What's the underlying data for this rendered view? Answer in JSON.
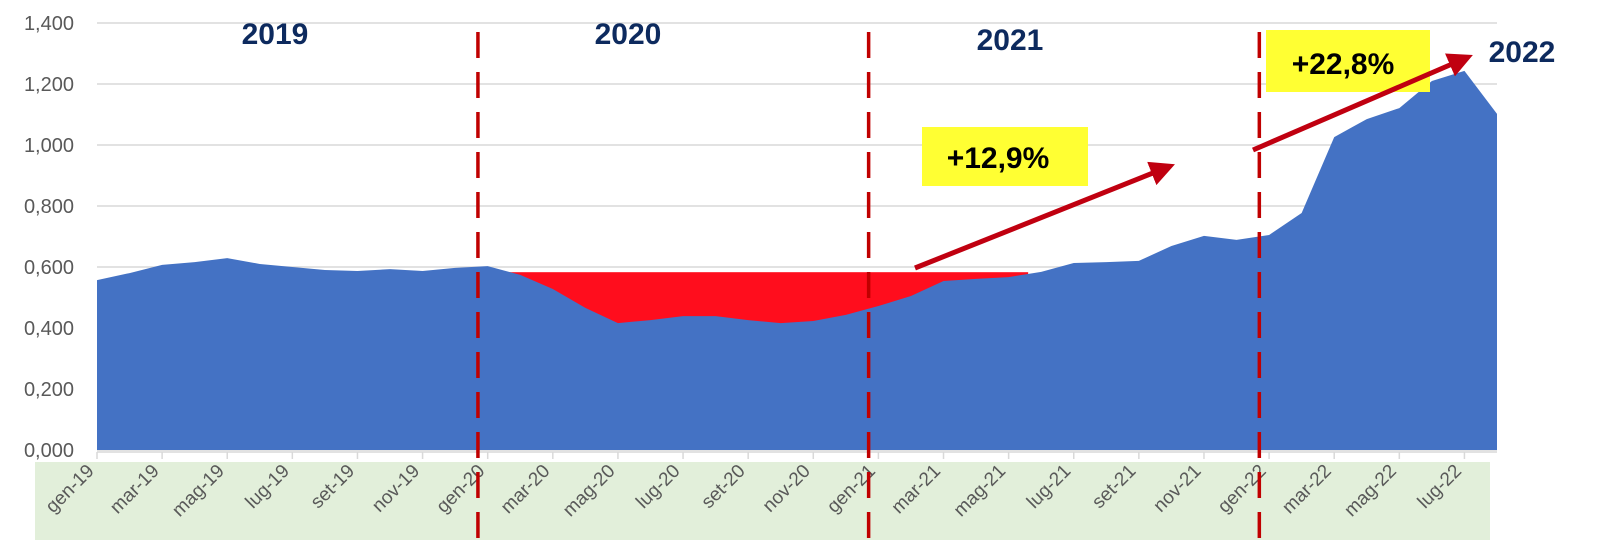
{
  "chart_data": {
    "type": "area",
    "title": "",
    "xlabel": "",
    "ylabel": "",
    "ylim": [
      0,
      1.4
    ],
    "y_ticks": [
      "0,000",
      "0,200",
      "0,400",
      "0,600",
      "0,800",
      "1,000",
      "1,200",
      "1,400"
    ],
    "y_tick_values": [
      0,
      0.2,
      0.4,
      0.6,
      0.8,
      1.0,
      1.2,
      1.4
    ],
    "grid": true,
    "x": [
      "gen-19",
      "feb-19",
      "mar-19",
      "apr-19",
      "mag-19",
      "giu-19",
      "lug-19",
      "ago-19",
      "set-19",
      "ott-19",
      "nov-19",
      "dic-19",
      "gen-20",
      "feb-20",
      "mar-20",
      "apr-20",
      "mag-20",
      "giu-20",
      "lug-20",
      "ago-20",
      "set-20",
      "ott-20",
      "nov-20",
      "dic-20",
      "gen-21",
      "feb-21",
      "mar-21",
      "apr-21",
      "mag-21",
      "giu-21",
      "lug-21",
      "ago-21",
      "set-21",
      "ott-21",
      "nov-21",
      "dic-21",
      "gen-22",
      "feb-22",
      "mar-22",
      "apr-22",
      "mag-22",
      "giu-22",
      "lug-22",
      "ago-22"
    ],
    "x_tick_labels": [
      "gen-19",
      "mar-19",
      "mag-19",
      "lug-19",
      "set-19",
      "nov-19",
      "gen-20",
      "mar-20",
      "mag-20",
      "lug-20",
      "set-20",
      "nov-20",
      "gen-21",
      "mar-21",
      "mag-21",
      "lug-21",
      "set-21",
      "nov-21",
      "gen-22",
      "mar-22",
      "mag-22",
      "lug-22"
    ],
    "values": [
      0.557,
      0.58,
      0.607,
      0.616,
      0.629,
      0.61,
      0.6,
      0.59,
      0.587,
      0.593,
      0.587,
      0.597,
      0.603,
      0.574,
      0.528,
      0.466,
      0.416,
      0.426,
      0.439,
      0.439,
      0.426,
      0.416,
      0.423,
      0.443,
      0.472,
      0.505,
      0.554,
      0.561,
      0.567,
      0.584,
      0.613,
      0.616,
      0.62,
      0.669,
      0.702,
      0.689,
      0.705,
      0.777,
      1.026,
      1.085,
      1.121,
      1.21,
      1.243,
      1.102
    ],
    "series_color": "#4472c4",
    "gap_fill": {
      "level": 0.583,
      "from": "gen-20",
      "to": "mag-21",
      "color": "#ff0d1d"
    },
    "year_dividers": {
      "positions_between": [
        [
          "dic-19",
          "gen-20"
        ],
        [
          "dic-20",
          "gen-21"
        ],
        [
          "dic-21",
          "gen-22"
        ]
      ],
      "color": "#c00000"
    },
    "year_labels": [
      "2019",
      "2020",
      "2021",
      "2022"
    ],
    "annotations": [
      {
        "text": "+12,9%",
        "background": "#ffff33",
        "arrow_color": "#c00010"
      },
      {
        "text": "+22,8%",
        "background": "#ffff33",
        "arrow_color": "#c00010"
      }
    ],
    "x_label_band_color": "#e2efda"
  }
}
